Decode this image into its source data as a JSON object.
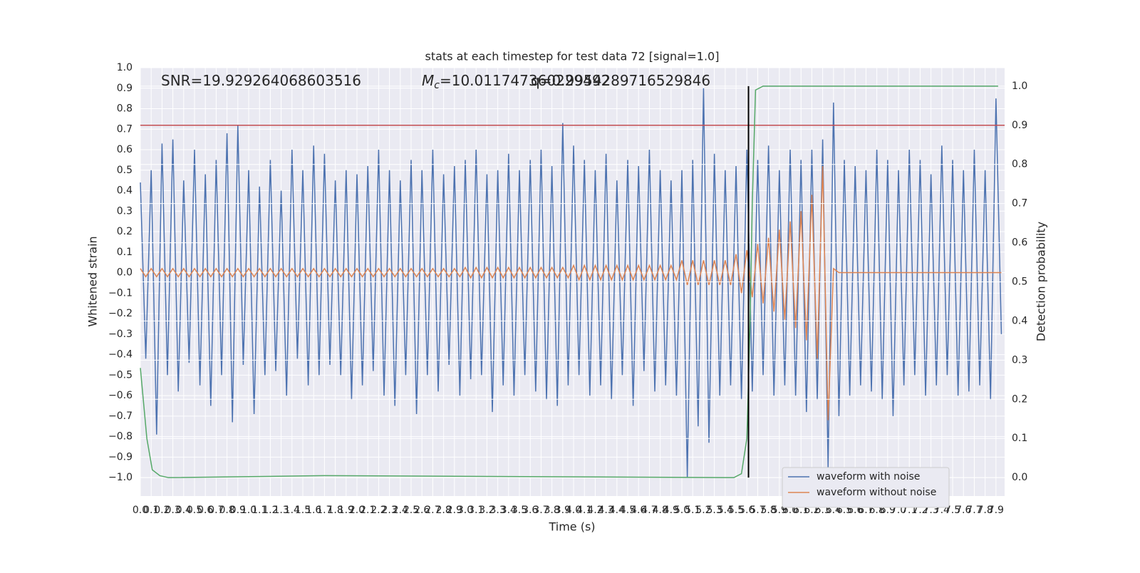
{
  "chart_data": {
    "type": "line",
    "title": "stats at each timestep for test data 72 [signal=1.0]",
    "xlabel": "Time (s)",
    "ylabel": "Whitened strain",
    "y2label": "Detection probability",
    "annotations": [
      {
        "text": "SNR=19.929264068603516"
      },
      {
        "symbol": "M",
        "subscript": "c",
        "text": "=10.011747360229492"
      },
      {
        "text": "q=0.9954289716529846"
      }
    ],
    "xlim": [
      0,
      7.98
    ],
    "ylim": [
      -1.09,
      1.0
    ],
    "y2lim": [
      -0.047,
      1.047
    ],
    "xticks": [
      {
        "value": 0,
        "label": "0.0"
      },
      0.1,
      0.2,
      0.3,
      0.4,
      0.5,
      0.6,
      0.7,
      0.8,
      0.9,
      {
        "value": 1,
        "label": "1.0"
      },
      1.1,
      1.2,
      1.3,
      1.4,
      1.5,
      1.6,
      1.7,
      1.8,
      1.9,
      {
        "value": 2,
        "label": "2.0"
      },
      2.1,
      2.2,
      2.3,
      2.4,
      2.5,
      2.6,
      2.7,
      2.8,
      2.9,
      {
        "value": 3,
        "label": "3.0"
      },
      3.1,
      3.2,
      3.3,
      3.4,
      3.5,
      3.6,
      3.7,
      3.8,
      3.9,
      {
        "value": 4,
        "label": "4.0"
      },
      4.1,
      4.2,
      4.3,
      4.4,
      4.5,
      4.6,
      4.7,
      4.8,
      4.9,
      {
        "value": 5,
        "label": "5.0"
      },
      5.1,
      5.2,
      5.3,
      5.4,
      5.5,
      5.6,
      5.7,
      5.8,
      5.9,
      {
        "value": 6,
        "label": "6.0"
      },
      6.1,
      6.2,
      6.3,
      6.4,
      6.5,
      6.6,
      6.7,
      6.8,
      6.9,
      {
        "value": 7,
        "label": "7.0"
      },
      7.1,
      7.2,
      7.3,
      7.4,
      7.5,
      7.6,
      7.7,
      7.8,
      7.9
    ],
    "yticks": [
      {
        "value": -1,
        "label": "−1.0"
      },
      {
        "value": -0.9,
        "label": "−0.9"
      },
      {
        "value": -0.8,
        "label": "−0.8"
      },
      {
        "value": -0.7,
        "label": "−0.7"
      },
      {
        "value": -0.6,
        "label": "−0.6"
      },
      {
        "value": -0.5,
        "label": "−0.5"
      },
      {
        "value": -0.4,
        "label": "−0.4"
      },
      {
        "value": -0.3,
        "label": "−0.3"
      },
      {
        "value": -0.2,
        "label": "−0.2"
      },
      {
        "value": -0.1,
        "label": "−0.1"
      },
      {
        "value": 0,
        "label": "0.0"
      },
      0.1,
      0.2,
      0.3,
      0.4,
      0.5,
      0.6,
      0.7,
      0.8,
      0.9,
      {
        "value": 1,
        "label": "1.0"
      }
    ],
    "y2ticks": [
      {
        "value": 0,
        "label": "0.0"
      },
      0.1,
      0.2,
      0.3,
      0.4,
      0.5,
      0.6,
      0.7,
      0.8,
      0.9,
      {
        "value": 1,
        "label": "1.0"
      }
    ],
    "grid": true,
    "legend": "lower right",
    "x": [
      0,
      0.05,
      0.1,
      0.15,
      0.2,
      0.25,
      0.3,
      0.35,
      0.4,
      0.45,
      0.5,
      0.55,
      0.6,
      0.65,
      0.7,
      0.75,
      0.8,
      0.85,
      0.9,
      0.95,
      1,
      1.05,
      1.1,
      1.15,
      1.2,
      1.25,
      1.3,
      1.35,
      1.4,
      1.45,
      1.5,
      1.55,
      1.6,
      1.65,
      1.7,
      1.75,
      1.8,
      1.85,
      1.9,
      1.95,
      2,
      2.05,
      2.1,
      2.15,
      2.2,
      2.25,
      2.3,
      2.35,
      2.4,
      2.45,
      2.5,
      2.55,
      2.6,
      2.65,
      2.7,
      2.75,
      2.8,
      2.85,
      2.9,
      2.95,
      3,
      3.05,
      3.1,
      3.15,
      3.2,
      3.25,
      3.3,
      3.35,
      3.4,
      3.45,
      3.5,
      3.55,
      3.6,
      3.65,
      3.7,
      3.75,
      3.8,
      3.85,
      3.9,
      3.95,
      4,
      4.05,
      4.1,
      4.15,
      4.2,
      4.25,
      4.3,
      4.35,
      4.4,
      4.45,
      4.5,
      4.55,
      4.6,
      4.65,
      4.7,
      4.75,
      4.8,
      4.85,
      4.9,
      4.95,
      5,
      5.05,
      5.1,
      5.15,
      5.2,
      5.25,
      5.3,
      5.35,
      5.4,
      5.45,
      5.5,
      5.55,
      5.6,
      5.65,
      5.7,
      5.75,
      5.8,
      5.85,
      5.9,
      5.95,
      6,
      6.05,
      6.1,
      6.15,
      6.2,
      6.25,
      6.3,
      6.35,
      6.4,
      6.45,
      6.5,
      6.55,
      6.6,
      6.65,
      6.7,
      6.75,
      6.8,
      6.85,
      6.9,
      6.95,
      7,
      7.05,
      7.1,
      7.15,
      7.2,
      7.25,
      7.3,
      7.35,
      7.4,
      7.45,
      7.5,
      7.55,
      7.6,
      7.65,
      7.7,
      7.75,
      7.8,
      7.85,
      7.9,
      7.95
    ],
    "series": [
      {
        "name": "waveform with noise",
        "color": "#4c72b0",
        "values": [
          0.44,
          -0.42,
          0.5,
          -0.79,
          0.63,
          -0.5,
          0.65,
          -0.58,
          0.45,
          -0.44,
          0.6,
          -0.55,
          0.48,
          -0.65,
          0.55,
          -0.5,
          0.68,
          -0.73,
          0.72,
          -0.45,
          0.5,
          -0.69,
          0.42,
          -0.5,
          0.55,
          -0.48,
          0.4,
          -0.6,
          0.6,
          -0.42,
          0.5,
          -0.55,
          0.62,
          -0.5,
          0.58,
          -0.45,
          0.45,
          -0.5,
          0.5,
          -0.62,
          0.48,
          -0.55,
          0.52,
          -0.48,
          0.6,
          -0.6,
          0.5,
          -0.65,
          0.45,
          -0.5,
          0.55,
          -0.69,
          0.5,
          -0.5,
          0.6,
          -0.58,
          0.48,
          -0.45,
          0.52,
          -0.6,
          0.55,
          -0.52,
          0.6,
          -0.5,
          0.48,
          -0.68,
          0.5,
          -0.55,
          0.58,
          -0.6,
          0.5,
          -0.5,
          0.55,
          -0.58,
          0.6,
          -0.62,
          0.52,
          -0.65,
          0.73,
          -0.55,
          0.62,
          -0.5,
          0.55,
          -0.6,
          0.5,
          -0.55,
          0.58,
          -0.62,
          0.45,
          -0.5,
          0.55,
          -0.65,
          0.52,
          -0.48,
          0.6,
          -0.58,
          0.5,
          -0.55,
          0.45,
          -0.6,
          0.5,
          -1.0,
          0.55,
          -0.75,
          0.9,
          -0.83,
          0.58,
          -0.6,
          0.5,
          -0.55,
          0.52,
          -0.62,
          0.6,
          -0.58,
          0.55,
          -0.5,
          0.62,
          -0.6,
          0.5,
          -0.55,
          0.6,
          -0.6,
          0.55,
          -0.68,
          0.6,
          -0.62,
          0.65,
          -0.95,
          0.83,
          -0.7,
          0.55,
          -0.6,
          0.52,
          -0.55,
          0.5,
          -0.58,
          0.6,
          -0.62,
          0.55,
          -0.7,
          0.5,
          -0.55,
          0.6,
          -0.5,
          0.55,
          -0.6,
          0.48,
          -0.55,
          0.62,
          -0.5,
          0.55,
          -0.6,
          0.5,
          -0.58,
          0.6,
          -0.55,
          0.5,
          -0.62,
          0.85,
          -0.3
        ]
      },
      {
        "name": "waveform without noise",
        "color": "#dd8452",
        "values": [
          0.02,
          -0.02,
          0.02,
          -0.02,
          0.02,
          -0.02,
          0.02,
          -0.02,
          0.02,
          -0.02,
          0.02,
          -0.02,
          0.02,
          -0.02,
          0.02,
          -0.02,
          0.02,
          -0.02,
          0.02,
          -0.02,
          0.02,
          -0.02,
          0.02,
          -0.02,
          0.02,
          -0.02,
          0.02,
          -0.02,
          0.02,
          -0.02,
          0.02,
          -0.02,
          0.02,
          -0.02,
          0.02,
          -0.02,
          0.02,
          -0.02,
          0.02,
          -0.02,
          0.02,
          -0.02,
          0.02,
          -0.02,
          0.02,
          -0.02,
          0.02,
          -0.02,
          0.02,
          -0.02,
          0.02,
          -0.02,
          0.02,
          -0.02,
          0.02,
          -0.02,
          0.02,
          -0.02,
          0.02,
          -0.02,
          0.025,
          -0.025,
          0.025,
          -0.025,
          0.025,
          -0.025,
          0.025,
          -0.025,
          0.025,
          -0.025,
          0.025,
          -0.025,
          0.025,
          -0.025,
          0.025,
          -0.025,
          0.025,
          -0.025,
          0.025,
          -0.025,
          0.035,
          -0.035,
          0.035,
          -0.035,
          0.035,
          -0.035,
          0.035,
          -0.035,
          0.035,
          -0.035,
          0.035,
          -0.035,
          0.035,
          -0.035,
          0.035,
          -0.035,
          0.035,
          -0.035,
          0.035,
          -0.035,
          0.06,
          -0.06,
          0.06,
          -0.06,
          0.06,
          -0.06,
          0.06,
          -0.06,
          0.06,
          -0.06,
          0.09,
          -0.1,
          0.11,
          -0.12,
          0.14,
          -0.15,
          0.17,
          -0.19,
          0.21,
          -0.23,
          0.25,
          -0.27,
          0.3,
          -0.33,
          0.38,
          -0.42,
          0.52,
          -0.72,
          0.02,
          0,
          0,
          0,
          0,
          0,
          0,
          0,
          0,
          0,
          0,
          0,
          0,
          0,
          0,
          0,
          0,
          0,
          0,
          0,
          0,
          0,
          0,
          0,
          0,
          0,
          0,
          0,
          0,
          0,
          0,
          0
        ]
      },
      {
        "color": "#55a868",
        "axis": "y2",
        "x": [
          0,
          0.06,
          0.11,
          0.18,
          0.26,
          1.7,
          5.48,
          5.55,
          5.6,
          5.63,
          5.65,
          5.68,
          5.75,
          7.92
        ],
        "values": [
          0.28,
          0.1,
          0.02,
          0.005,
          0,
          0.005,
          0,
          0.01,
          0.1,
          0.4,
          0.7,
          0.99,
          1.0,
          1.0
        ]
      }
    ],
    "threshold": {
      "axis": "y2",
      "value": 0.9,
      "color": "#c44e52"
    },
    "marker": {
      "x": 5.615,
      "y2": [
        0,
        1
      ],
      "color": "#000000"
    }
  }
}
